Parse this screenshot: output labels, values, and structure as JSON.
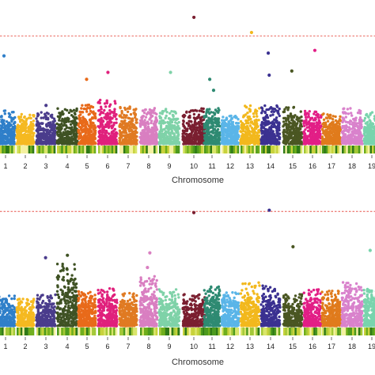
{
  "chart_data": [
    {
      "type": "scatter",
      "panel": "top",
      "xlabel": "Chromosome",
      "ylabel": "",
      "threshold_line": {
        "style": "dashed",
        "color": "#e8574f"
      },
      "categories": [
        "1",
        "2",
        "3",
        "4",
        "5",
        "6",
        "7",
        "8",
        "9",
        "10",
        "11",
        "12",
        "13",
        "14",
        "15",
        "16",
        "17",
        "18",
        "19"
      ],
      "ylim": [
        0,
        10
      ],
      "threshold": 7.85,
      "chromosomes": [
        {
          "chr": "1",
          "peak": 2.5,
          "outliers": [
            6.4
          ]
        },
        {
          "chr": "2",
          "peak": 2.2,
          "outliers": []
        },
        {
          "chr": "3",
          "peak": 2.3,
          "outliers": [
            2.8
          ]
        },
        {
          "chr": "4",
          "peak": 2.7,
          "outliers": []
        },
        {
          "chr": "5",
          "peak": 3.0,
          "outliers": [
            4.7
          ]
        },
        {
          "chr": "6",
          "peak": 3.2,
          "outliers": [
            5.2
          ]
        },
        {
          "chr": "7",
          "peak": 2.8,
          "outliers": []
        },
        {
          "chr": "8",
          "peak": 2.6,
          "outliers": []
        },
        {
          "chr": "9",
          "peak": 2.6,
          "outliers": [
            5.2
          ]
        },
        {
          "chr": "10",
          "peak": 2.6,
          "outliers": [
            9.2
          ]
        },
        {
          "chr": "11",
          "peak": 2.6,
          "outliers": [
            4.7,
            3.9
          ]
        },
        {
          "chr": "12",
          "peak": 2.1,
          "outliers": []
        },
        {
          "chr": "13",
          "peak": 2.8,
          "outliers": [
            8.1
          ]
        },
        {
          "chr": "14",
          "peak": 2.8,
          "outliers": [
            6.6,
            5.0
          ]
        },
        {
          "chr": "15",
          "peak": 2.7,
          "outliers": [
            5.3
          ]
        },
        {
          "chr": "16",
          "peak": 2.4,
          "outliers": [
            6.8
          ]
        },
        {
          "chr": "17",
          "peak": 2.2,
          "outliers": []
        },
        {
          "chr": "18",
          "peak": 2.6,
          "outliers": []
        },
        {
          "chr": "19",
          "peak": 2.3,
          "outliers": []
        }
      ]
    },
    {
      "type": "scatter",
      "panel": "bottom",
      "xlabel": "Chromosome",
      "ylabel": "",
      "threshold_line": {
        "style": "dashed",
        "color": "#e8574f"
      },
      "categories": [
        "1",
        "2",
        "3",
        "4",
        "5",
        "6",
        "7",
        "8",
        "9",
        "10",
        "11",
        "12",
        "13",
        "14",
        "15",
        "16",
        "17",
        "18",
        "19"
      ],
      "ylim": [
        0,
        10
      ],
      "threshold": 9.4,
      "chromosomes": [
        {
          "chr": "1",
          "peak": 2.5,
          "outliers": []
        },
        {
          "chr": "2",
          "peak": 2.3,
          "outliers": []
        },
        {
          "chr": "3",
          "peak": 2.6,
          "outliers": [
            5.6
          ]
        },
        {
          "chr": "4",
          "peak": 5.1,
          "outliers": [
            5.8
          ]
        },
        {
          "chr": "5",
          "peak": 2.9,
          "outliers": []
        },
        {
          "chr": "6",
          "peak": 3.1,
          "outliers": []
        },
        {
          "chr": "7",
          "peak": 2.7,
          "outliers": []
        },
        {
          "chr": "8",
          "peak": 4.1,
          "outliers": [
            6.0,
            4.8
          ]
        },
        {
          "chr": "9",
          "peak": 3.0,
          "outliers": []
        },
        {
          "chr": "10",
          "peak": 2.6,
          "outliers": [
            9.3
          ]
        },
        {
          "chr": "11",
          "peak": 3.3,
          "outliers": []
        },
        {
          "chr": "12",
          "peak": 2.8,
          "outliers": []
        },
        {
          "chr": "13",
          "peak": 3.6,
          "outliers": []
        },
        {
          "chr": "14",
          "peak": 3.3,
          "outliers": [
            9.5
          ]
        },
        {
          "chr": "15",
          "peak": 2.7,
          "outliers": [
            6.5
          ]
        },
        {
          "chr": "16",
          "peak": 3.0,
          "outliers": []
        },
        {
          "chr": "17",
          "peak": 2.9,
          "outliers": []
        },
        {
          "chr": "18",
          "peak": 3.7,
          "outliers": []
        },
        {
          "chr": "19",
          "peak": 3.1,
          "outliers": [
            6.2
          ]
        }
      ]
    }
  ],
  "colors": [
    "#2f7fc9",
    "#f5b921",
    "#4a3c8c",
    "#3f5224",
    "#e86a1a",
    "#e0207c",
    "#e07a22",
    "#d97fc1",
    "#7fd2a8",
    "#7a1f30",
    "#2e8a72",
    "#5ab5e8",
    "#f2b81d",
    "#3b3191",
    "#4a5622",
    "#e21e86",
    "#e07b1c",
    "#d982cc",
    "#79d4ad",
    "#8c1d38"
  ],
  "density_colors": [
    "#2f7a17",
    "#6fae1c",
    "#a3c837",
    "#d9e56a",
    "#f4f1a0",
    "#c8d23c",
    "#4c9a1e"
  ]
}
